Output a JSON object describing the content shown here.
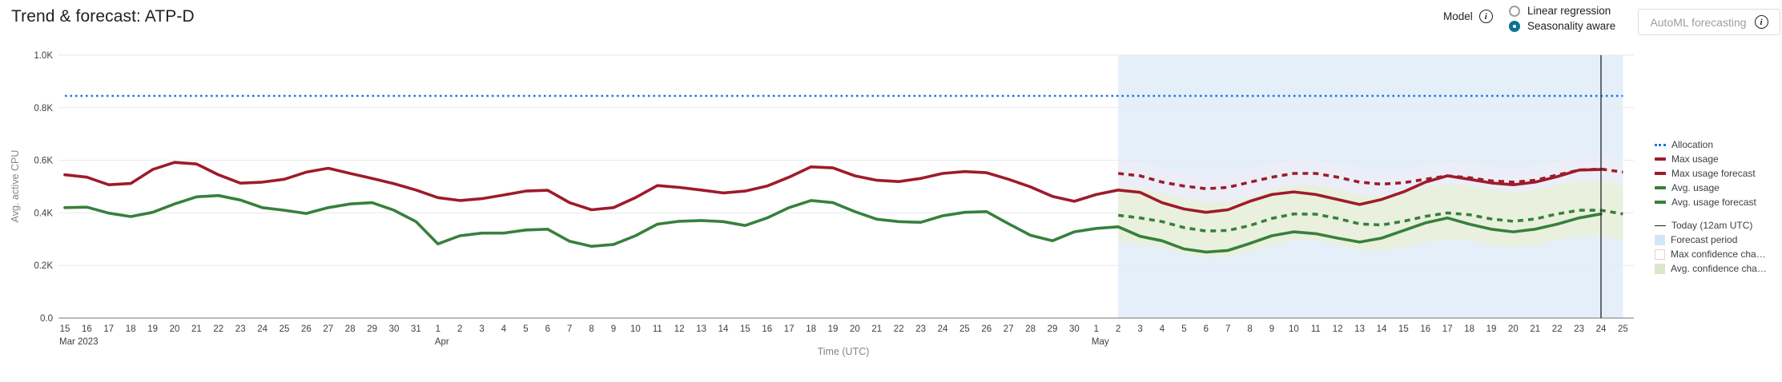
{
  "header": {
    "title": "Trend & forecast: ATP-D"
  },
  "controls": {
    "model_label": "Model",
    "radios": [
      {
        "label": "Linear regression",
        "selected": false,
        "slug": "linear-regression"
      },
      {
        "label": "Seasonality aware",
        "selected": true,
        "slug": "seasonality-aware"
      }
    ],
    "automl_button_label": "AutoML forecasting"
  },
  "chart_data": {
    "type": "line",
    "title": "Trend & forecast: ATP-D",
    "xlabel": "Time (UTC)",
    "ylabel": "Avg. active CPU",
    "ylim": [
      0,
      1000
    ],
    "x_start": "Mar 15 2023",
    "x_end": "May 25 2023",
    "grid": true,
    "legend_position": "right",
    "yticks": [
      {
        "value": 0,
        "label": "0.0"
      },
      {
        "value": 200,
        "label": "0.2K"
      },
      {
        "value": 400,
        "label": "0.4K"
      },
      {
        "value": 600,
        "label": "0.6K"
      },
      {
        "value": 800,
        "label": "0.8K"
      },
      {
        "value": 1000,
        "label": "1.0K"
      }
    ],
    "x_labels": [
      "15",
      "16",
      "17",
      "18",
      "19",
      "20",
      "21",
      "22",
      "23",
      "24",
      "25",
      "26",
      "27",
      "28",
      "29",
      "30",
      "31",
      "1",
      "2",
      "3",
      "4",
      "5",
      "6",
      "7",
      "8",
      "9",
      "10",
      "11",
      "12",
      "13",
      "14",
      "15",
      "16",
      "17",
      "18",
      "19",
      "20",
      "21",
      "22",
      "23",
      "24",
      "25",
      "26",
      "27",
      "28",
      "29",
      "30",
      "1",
      "2",
      "3",
      "4",
      "5",
      "6",
      "7",
      "8",
      "9",
      "10",
      "11",
      "12",
      "13",
      "14",
      "15",
      "16",
      "17",
      "18",
      "19",
      "20",
      "21",
      "22",
      "23",
      "24",
      "25"
    ],
    "month_markers": [
      {
        "index": 0,
        "label": "Mar 2023"
      },
      {
        "index": 17,
        "label": "Apr"
      },
      {
        "index": 47,
        "label": "May"
      }
    ],
    "allocation": 845,
    "forecast_start_index": 48,
    "today_index": 70,
    "colors": {
      "allocation": "#1a73e8",
      "max": "#9e1b2b",
      "avg": "#37803c",
      "forecast_fill": "#e4effa",
      "today": "#202124",
      "gridline": "#e8eaed",
      "axis_line": "#757575"
    },
    "series": [
      {
        "name": "Max usage",
        "slug": "max-usage",
        "color": "#9e1b2b",
        "style": "solid",
        "start_index": 0,
        "values": [
          545,
          536,
          507,
          512,
          565,
          592,
          586,
          545,
          513,
          517,
          528,
          555,
          570,
          550,
          531,
          511,
          487,
          458,
          447,
          454,
          468,
          483,
          486,
          439,
          412,
          420,
          458,
          504,
          497,
          487,
          476,
          483,
          502,
          536,
          575,
          571,
          541,
          524,
          519,
          531,
          550,
          557,
          553,
          528,
          499,
          463,
          444,
          470,
          487,
          478,
          439,
          415,
          402,
          412,
          444,
          470,
          480,
          470,
          451,
          432,
          451,
          480,
          517,
          541,
          528,
          514,
          507,
          517,
          538,
          563,
          565
        ]
      },
      {
        "name": "Avg. usage",
        "slug": "avg-usage",
        "color": "#37803c",
        "style": "solid",
        "start_index": 0,
        "values": [
          420,
          422,
          399,
          386,
          402,
          434,
          461,
          466,
          449,
          420,
          410,
          398,
          420,
          434,
          439,
          410,
          367,
          282,
          313,
          323,
          323,
          335,
          338,
          292,
          273,
          280,
          313,
          357,
          368,
          371,
          367,
          352,
          381,
          420,
          447,
          439,
          405,
          376,
          367,
          364,
          389,
          402,
          405,
          359,
          315,
          294,
          328,
          341,
          347,
          311,
          294,
          263,
          251,
          257,
          284,
          313,
          328,
          321,
          304,
          289,
          304,
          333,
          362,
          381,
          357,
          338,
          328,
          338,
          357,
          381,
          396
        ]
      },
      {
        "name": "Max usage forecast",
        "slug": "max-usage-forecast",
        "color": "#9e1b2b",
        "style": "dashed",
        "start_index": 48,
        "values": [
          550,
          541,
          517,
          502,
          492,
          497,
          517,
          536,
          550,
          550,
          536,
          517,
          509,
          515,
          528,
          541,
          534,
          522,
          517,
          524,
          544,
          563,
          567,
          555
        ]
      },
      {
        "name": "Avg. usage forecast",
        "slug": "avg-usage-forecast",
        "color": "#37803c",
        "style": "dashed",
        "start_index": 48,
        "values": [
          391,
          381,
          367,
          344,
          331,
          333,
          352,
          379,
          396,
          395,
          379,
          358,
          354,
          368,
          387,
          400,
          393,
          377,
          368,
          377,
          396,
          410,
          410,
          396
        ]
      }
    ],
    "bands_start_index": 48,
    "bands": {
      "max_confidence": {
        "name": "Max confidence change",
        "color": "#fbeef0",
        "opacity": 0.35,
        "upper": [
          600,
          591,
          567,
          552,
          542,
          547,
          567,
          586,
          600,
          600,
          586,
          567,
          559,
          565,
          578,
          591,
          584,
          572,
          567,
          574,
          594,
          613,
          617,
          605
        ],
        "lower": [
          485,
          476,
          452,
          437,
          427,
          432,
          452,
          471,
          485,
          485,
          471,
          452,
          444,
          450,
          463,
          476,
          469,
          457,
          452,
          459,
          479,
          498,
          502,
          490
        ]
      },
      "avg_confidence": {
        "name": "Avg confidence change",
        "color": "#e9efdb",
        "opacity": 0.95,
        "upper": [
          501,
          491,
          477,
          454,
          441,
          443,
          462,
          489,
          506,
          505,
          489,
          468,
          464,
          478,
          497,
          510,
          503,
          487,
          478,
          487,
          506,
          520,
          520,
          506
        ],
        "lower": [
          291,
          281,
          267,
          244,
          231,
          233,
          252,
          279,
          296,
          295,
          279,
          258,
          254,
          268,
          287,
          300,
          293,
          277,
          268,
          277,
          296,
          310,
          310,
          296
        ]
      }
    },
    "legend": [
      {
        "label": "Allocation",
        "swatch": "dotted-blue"
      },
      {
        "label": "Max usage",
        "swatch": "solid-red"
      },
      {
        "label": "Max usage forecast",
        "swatch": "dashed-red"
      },
      {
        "label": "Avg. usage",
        "swatch": "solid-green"
      },
      {
        "label": "Avg. usage forecast",
        "swatch": "dashed-green"
      },
      {
        "label": "Today (12am UTC)",
        "swatch": "today-line",
        "gap": true
      },
      {
        "label": "Forecast period",
        "swatch": "blue-square"
      },
      {
        "label": "Max confidence cha…",
        "swatch": "pink-square"
      },
      {
        "label": "Avg. confidence cha…",
        "swatch": "green-square"
      }
    ]
  }
}
